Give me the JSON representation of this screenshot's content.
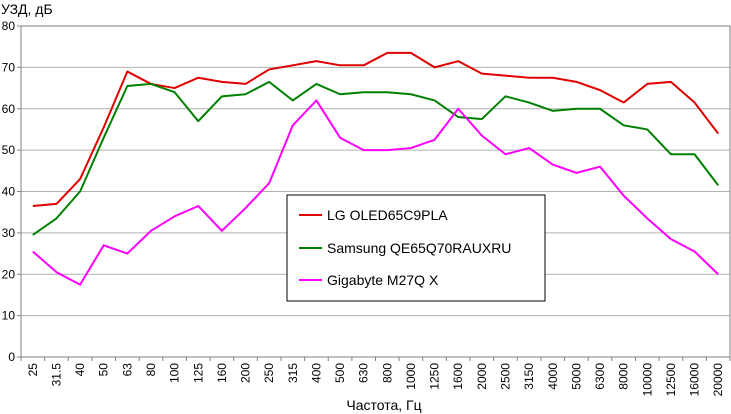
{
  "chart_data": {
    "type": "line",
    "ylabel": "УЗД, дБ",
    "xlabel": "Частота, Гц",
    "ylim": [
      0,
      80
    ],
    "yticks": [
      0,
      10,
      20,
      30,
      40,
      50,
      60,
      70,
      80
    ],
    "grid": "horizontal",
    "legend_position": "center",
    "categories": [
      "25",
      "31.5",
      "40",
      "50",
      "63",
      "80",
      "100",
      "125",
      "160",
      "200",
      "250",
      "315",
      "400",
      "500",
      "630",
      "800",
      "1000",
      "1250",
      "1600",
      "2000",
      "2500",
      "3150",
      "4000",
      "5000",
      "6300",
      "8000",
      "10000",
      "12500",
      "16000",
      "20000"
    ],
    "series": [
      {
        "name": "LG OLED65C9PLA",
        "color": "#e00000",
        "values": [
          36.5,
          37,
          43,
          55.5,
          69,
          66,
          65,
          67.5,
          66.5,
          66,
          69.5,
          70.5,
          71.5,
          70.5,
          70.5,
          73.5,
          73.5,
          70,
          71.5,
          68.5,
          68,
          67.5,
          67.5,
          66.5,
          64.5,
          61.5,
          66,
          66.5,
          61.5,
          54
        ]
      },
      {
        "name": "Samsung QE65Q70RAUXRU",
        "color": "#008000",
        "values": [
          29.5,
          33.5,
          40,
          53,
          65.5,
          66,
          64,
          57,
          63,
          63.5,
          66.5,
          62,
          66,
          63.5,
          64,
          64,
          63.5,
          62,
          58,
          57.5,
          63,
          61.5,
          59.5,
          60,
          60,
          56,
          55,
          49,
          49,
          41.5
        ]
      },
      {
        "name": "Gigabyte M27Q X",
        "color": "#ff00ff",
        "values": [
          25.5,
          20.5,
          17.5,
          27,
          25,
          30.5,
          34,
          36.5,
          30.5,
          36,
          42,
          56,
          62,
          53,
          50,
          50,
          50.5,
          52.5,
          60,
          53.5,
          49,
          50.5,
          46.5,
          44.5,
          46,
          39,
          33.5,
          28.5,
          25.5,
          20
        ]
      }
    ]
  }
}
